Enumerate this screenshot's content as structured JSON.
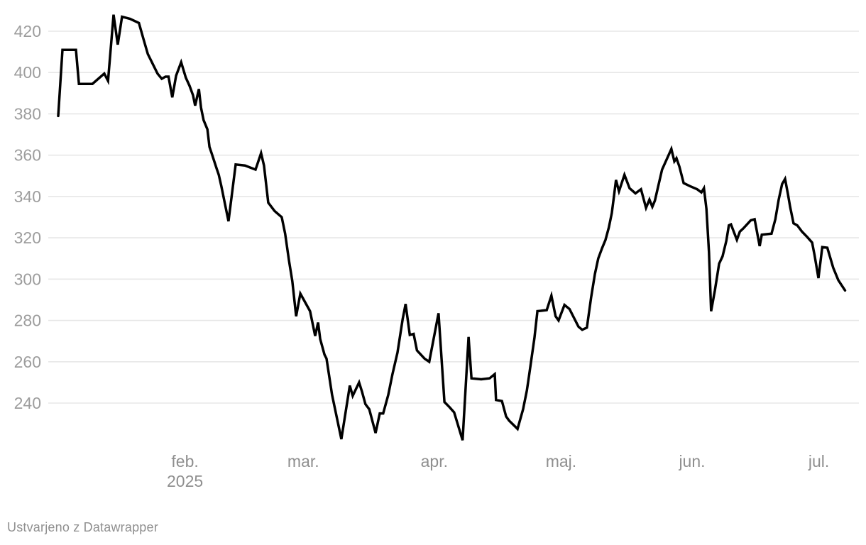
{
  "footer": {
    "attribution": "Ustvarjeno z Datawrapper"
  },
  "colors": {
    "background": "#ffffff",
    "line": "#000000",
    "grid": "#e7e7e7",
    "y_axis_text": "#9d9d9d",
    "x_axis_text": "#8f8f8f",
    "footer_text": "#8f8f8f"
  },
  "chart_data": {
    "type": "line",
    "title": "",
    "legend": "none",
    "grid": "horizontal-only",
    "start_date": "2025-01-02",
    "end_date": "2025-07-07",
    "x_unit": "days_since_start",
    "x_axis": {
      "month_ticks": [
        {
          "label": "feb.",
          "year_label": "2025",
          "day": 30
        },
        {
          "label": "mar.",
          "year_label": "",
          "day": 58
        },
        {
          "label": "apr.",
          "year_label": "",
          "day": 89
        },
        {
          "label": "maj.",
          "year_label": "",
          "day": 119
        },
        {
          "label": "jun.",
          "year_label": "",
          "day": 150
        },
        {
          "label": "jul.",
          "year_label": "",
          "day": 180
        }
      ]
    },
    "y_axis": {
      "ticks": [
        240,
        260,
        280,
        300,
        320,
        340,
        360,
        380,
        400,
        420
      ],
      "min": 218,
      "max": 430
    },
    "series": [
      {
        "name": "value",
        "color": "#000000",
        "points": [
          [
            0,
            379
          ],
          [
            1,
            411
          ],
          [
            4.2,
            411
          ],
          [
            4.9,
            394.5
          ],
          [
            8.1,
            394.5
          ],
          [
            10.9,
            399.5
          ],
          [
            11.8,
            396
          ],
          [
            13.1,
            428
          ],
          [
            14.1,
            413.5
          ],
          [
            15.1,
            427
          ],
          [
            17,
            426
          ],
          [
            19.1,
            424
          ],
          [
            20.2,
            416
          ],
          [
            21.2,
            409
          ],
          [
            23.5,
            399.5
          ],
          [
            24.5,
            397
          ],
          [
            25.4,
            398
          ],
          [
            26.1,
            398
          ],
          [
            27,
            388
          ],
          [
            27.9,
            398.5
          ],
          [
            29.1,
            405
          ],
          [
            30.2,
            397.5
          ],
          [
            31.1,
            393.5
          ],
          [
            31.9,
            389
          ],
          [
            32.4,
            384
          ],
          [
            33.3,
            392
          ],
          [
            33.8,
            383
          ],
          [
            34.4,
            377
          ],
          [
            35.3,
            372.5
          ],
          [
            35.8,
            364
          ],
          [
            36.3,
            361
          ],
          [
            37.5,
            353.5
          ],
          [
            38,
            350.5
          ],
          [
            38.6,
            345
          ],
          [
            40.3,
            328
          ],
          [
            42,
            355.5
          ],
          [
            44.2,
            355
          ],
          [
            46.7,
            353
          ],
          [
            48,
            361
          ],
          [
            48.7,
            355
          ],
          [
            49.7,
            337
          ],
          [
            51.2,
            333
          ],
          [
            52.9,
            330
          ],
          [
            53.7,
            322
          ],
          [
            54.6,
            309
          ],
          [
            55.4,
            299
          ],
          [
            56.3,
            282
          ],
          [
            57.3,
            293
          ],
          [
            58.1,
            290
          ],
          [
            59.6,
            284.5
          ],
          [
            60.8,
            272.5
          ],
          [
            61.5,
            279
          ],
          [
            62,
            271
          ],
          [
            63,
            263.5
          ],
          [
            63.5,
            261.5
          ],
          [
            64.8,
            244
          ],
          [
            67,
            222.5
          ],
          [
            69,
            248.5
          ],
          [
            69.7,
            243.5
          ],
          [
            71.2,
            250
          ],
          [
            71.9,
            245.5
          ],
          [
            72.7,
            239.5
          ],
          [
            73.6,
            237
          ],
          [
            75.1,
            225.5
          ],
          [
            76.1,
            235
          ],
          [
            76.9,
            235
          ],
          [
            78.1,
            244
          ],
          [
            79.1,
            254
          ],
          [
            80.3,
            264.5
          ],
          [
            81.5,
            280.5
          ],
          [
            82.2,
            288
          ],
          [
            83.2,
            273
          ],
          [
            84.1,
            273.5
          ],
          [
            84.9,
            265.5
          ],
          [
            86.7,
            261.5
          ],
          [
            87.8,
            260
          ],
          [
            90,
            283.5
          ],
          [
            91.4,
            240.5
          ],
          [
            92.6,
            238
          ],
          [
            93.7,
            235.5
          ],
          [
            95.7,
            222
          ],
          [
            97.1,
            272
          ],
          [
            97.8,
            252
          ],
          [
            100.1,
            251.5
          ],
          [
            102.1,
            252
          ],
          [
            103.3,
            254
          ],
          [
            103.6,
            241.5
          ],
          [
            105,
            241
          ],
          [
            106,
            233.5
          ],
          [
            106.7,
            231.5
          ],
          [
            108.7,
            227.5
          ],
          [
            110,
            237
          ],
          [
            110.9,
            246
          ],
          [
            111.4,
            253
          ],
          [
            112.7,
            271.5
          ],
          [
            113.4,
            284.5
          ],
          [
            115.6,
            285
          ],
          [
            116.7,
            292
          ],
          [
            117.7,
            282
          ],
          [
            118.4,
            280
          ],
          [
            119.8,
            287.5
          ],
          [
            121,
            285.5
          ],
          [
            123.1,
            277
          ],
          [
            124,
            275.5
          ],
          [
            125.1,
            276.5
          ],
          [
            126.1,
            291
          ],
          [
            127,
            302.5
          ],
          [
            127.8,
            310
          ],
          [
            128.7,
            315
          ],
          [
            129.5,
            319
          ],
          [
            130.3,
            325
          ],
          [
            131,
            332
          ],
          [
            131.5,
            340
          ],
          [
            132,
            348
          ],
          [
            132.7,
            342.5
          ],
          [
            134,
            350.5
          ],
          [
            135.2,
            344
          ],
          [
            136.6,
            341.5
          ],
          [
            137.9,
            343.5
          ],
          [
            139.1,
            334.5
          ],
          [
            139.9,
            338.5
          ],
          [
            140.6,
            335
          ],
          [
            141.2,
            338
          ],
          [
            142.9,
            353
          ],
          [
            145.1,
            363
          ],
          [
            145.8,
            357
          ],
          [
            146.3,
            358.5
          ],
          [
            147,
            354.5
          ],
          [
            148,
            346.5
          ],
          [
            149.5,
            345
          ],
          [
            151.2,
            343.5
          ],
          [
            152.2,
            342
          ],
          [
            152.8,
            344
          ],
          [
            153.4,
            334
          ],
          [
            154,
            313
          ],
          [
            154.5,
            284.5
          ],
          [
            155.4,
            294.5
          ],
          [
            156.4,
            307.5
          ],
          [
            157.2,
            311
          ],
          [
            158.1,
            318.5
          ],
          [
            158.7,
            326
          ],
          [
            159.2,
            326.5
          ],
          [
            160.6,
            319
          ],
          [
            161.3,
            323
          ],
          [
            162.1,
            324.5
          ],
          [
            163.9,
            328.5
          ],
          [
            164.8,
            329
          ],
          [
            166,
            316
          ],
          [
            166.5,
            321.5
          ],
          [
            168.8,
            322
          ],
          [
            169.7,
            329
          ],
          [
            170.5,
            338.5
          ],
          [
            171.3,
            346
          ],
          [
            172,
            348.5
          ],
          [
            172.7,
            341
          ],
          [
            173.2,
            335
          ],
          [
            174,
            327
          ],
          [
            174.9,
            326
          ],
          [
            176,
            323
          ],
          [
            177.2,
            320.5
          ],
          [
            178.4,
            317.7
          ],
          [
            179,
            311.5
          ],
          [
            179.9,
            300.5
          ],
          [
            180.8,
            315.5
          ],
          [
            182,
            315.2
          ],
          [
            183.4,
            305.5
          ],
          [
            184.6,
            299.5
          ],
          [
            186.2,
            294.5
          ]
        ]
      }
    ]
  }
}
